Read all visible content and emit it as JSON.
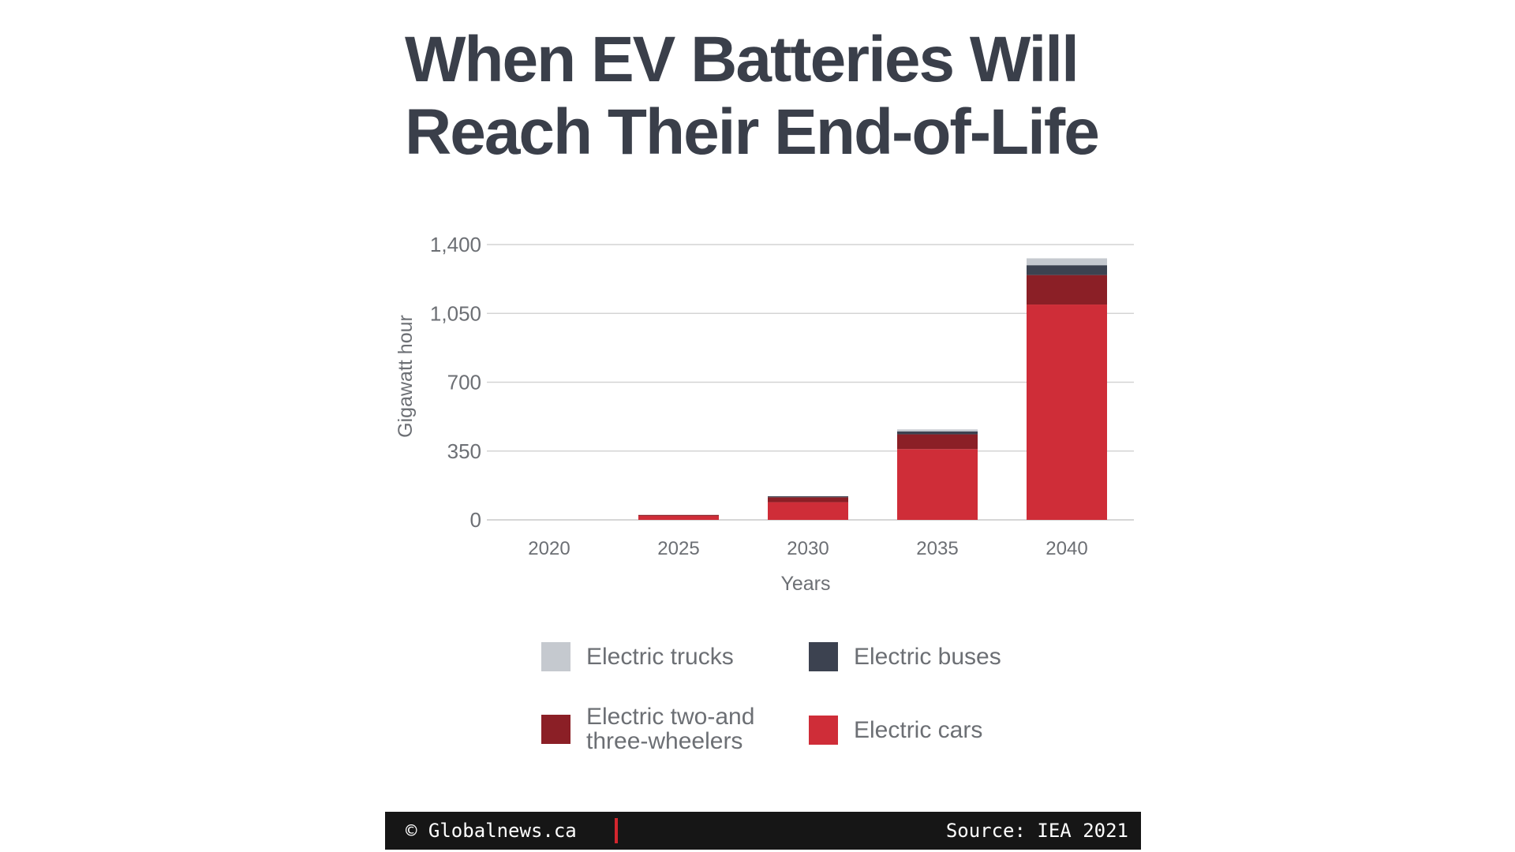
{
  "title_lines": [
    "When EV Batteries Will",
    "Reach Their End-of-Life"
  ],
  "chart_data": {
    "type": "bar",
    "stacked": true,
    "categories": [
      "2020",
      "2025",
      "2030",
      "2035",
      "2040"
    ],
    "xlabel": "Years",
    "ylabel": "Gigawatt hour",
    "ylim": [
      0,
      1400
    ],
    "yticks": [
      0,
      350,
      700,
      1050,
      1400
    ],
    "ytick_labels": [
      "0",
      "350",
      "700",
      "1,050",
      "1,400"
    ],
    "grid": true,
    "series": [
      {
        "name": "Electric cars",
        "color": "#cf2d38",
        "values": [
          0,
          20,
          90,
          360,
          1095
        ]
      },
      {
        "name": "Electric two-and three-wheelers",
        "color": "#8b1f26",
        "values": [
          0,
          5,
          25,
          75,
          150
        ]
      },
      {
        "name": "Electric buses",
        "color": "#3c4250",
        "values": [
          0,
          0,
          5,
          15,
          50
        ]
      },
      {
        "name": "Electric trucks",
        "color": "#c5c9cf",
        "values": [
          0,
          0,
          0,
          10,
          35
        ]
      }
    ]
  },
  "legend": [
    {
      "label": "Electric trucks",
      "color": "#c5c9cf"
    },
    {
      "label": "Electric buses",
      "color": "#3c4250"
    },
    {
      "label": "Electric two-and\nthree-wheelers",
      "color": "#8b1f26"
    },
    {
      "label": "Electric cars",
      "color": "#cf2d38"
    }
  ],
  "footer": {
    "copyright": "©  Globalnews.ca",
    "source": "Source: IEA 2021",
    "divider_color": "#d3262e"
  }
}
